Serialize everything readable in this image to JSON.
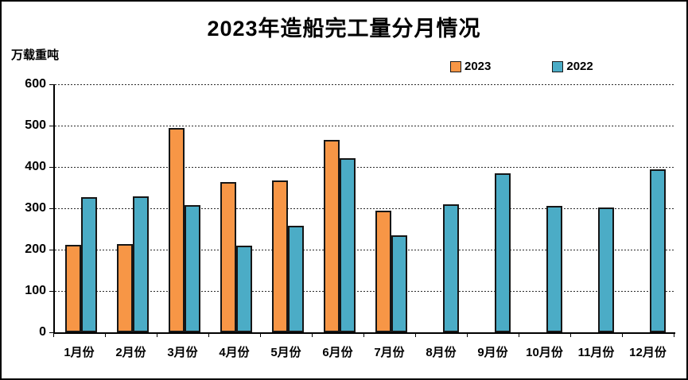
{
  "page": {
    "title": "2023年造船完工量分月情况",
    "y_axis_unit": "万载重吨"
  },
  "chart_data": {
    "type": "bar",
    "title": "2023年造船完工量分月情况",
    "xlabel": "",
    "ylabel": "万载重吨",
    "categories": [
      "1月份",
      "2月份",
      "3月份",
      "4月份",
      "5月份",
      "6月份",
      "7月份",
      "8月份",
      "9月份",
      "10月份",
      "11月份",
      "12月份"
    ],
    "series": [
      {
        "name": "2023",
        "color": "#F79646",
        "values": [
          211,
          214,
          494,
          363,
          368,
          466,
          294,
          null,
          null,
          null,
          null,
          null
        ]
      },
      {
        "name": "2022",
        "color": "#4BACC6",
        "values": [
          326,
          328,
          307,
          210,
          257,
          421,
          234,
          310,
          385,
          306,
          302,
          394
        ]
      }
    ],
    "ylim": [
      0,
      600
    ],
    "y_ticks": [
      0,
      100,
      200,
      300,
      400,
      500,
      600
    ],
    "grid": "horizontal-dashed",
    "legend_position": "top-right"
  }
}
